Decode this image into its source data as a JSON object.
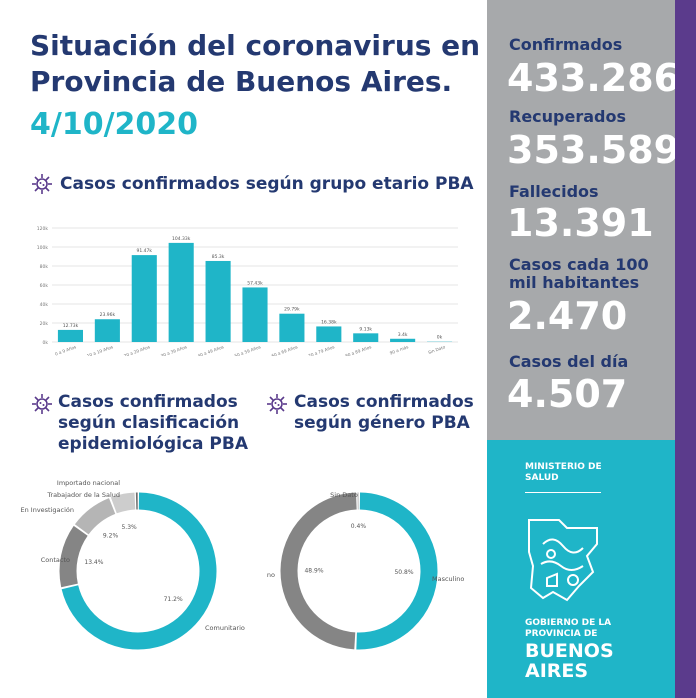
{
  "header": {
    "title": "Situación del coronavirus en\nProvincia de Buenos Aires.",
    "date": "4/10/2020"
  },
  "colors": {
    "navy": "#243971",
    "teal": "#1FB5C8",
    "gray": "#A7A9AB",
    "purple": "#5B3B8C",
    "donut_gray_dark": "#858585",
    "donut_gray_light": "#B5B5B5"
  },
  "icons": {
    "section": "virus-icon"
  },
  "sections": {
    "age": "Casos confirmados según grupo etario PBA",
    "epi": "Casos confirmados\nsegún clasificación\nepidemiológica PBA",
    "gender": "Casos confirmados\nsegún género PBA"
  },
  "stats": [
    {
      "label": "Confirmados",
      "value": "433.286"
    },
    {
      "label": "Recuperados",
      "value": "353.589"
    },
    {
      "label": "Fallecidos",
      "value": "13.391"
    },
    {
      "label": "Casos cada 100\nmil habitantes",
      "value": "2.470"
    },
    {
      "label": "Casos del día",
      "value": "4.507"
    }
  ],
  "brand": {
    "ministry": "MINISTERIO DE\nSALUD",
    "gov": "GOBIERNO DE LA\nPROVINCIA DE",
    "ba": "BUENOS\nAIRES"
  },
  "chart_data": [
    {
      "type": "bar",
      "categories": [
        "0 a 9 Años",
        "10 a 19 Años",
        "20 a 29 Años",
        "30 a 39 Años",
        "40 a 49 Años",
        "50 a 59 Años",
        "60 a 69 Años",
        "70 a 79 Años",
        "80 a 89 Años",
        "90 a más",
        "Sin Dato"
      ],
      "values": [
        12730,
        23960,
        91470,
        104330,
        85300,
        57430,
        29790,
        16380,
        9130,
        3400,
        300
      ],
      "data_labels": [
        "12.73k",
        "23.96k",
        "91.47k",
        "104.33k",
        "85.3k",
        "57.43k",
        "29.79k",
        "16.38k",
        "9.13k",
        "3.4k",
        "0k"
      ],
      "ytick_labels": [
        "0k",
        "20k",
        "40k",
        "60k",
        "80k",
        "100k",
        "120k"
      ],
      "ylim": [
        0,
        120000
      ],
      "grid": true
    },
    {
      "type": "pie",
      "labels": [
        "Comunitario",
        "Contacto",
        "En Investigación",
        "Trabajador de la Salud",
        "Importado nacional"
      ],
      "values": [
        71.2,
        13.4,
        9.2,
        5.3,
        0.5
      ],
      "pct_labels": [
        "71.2%",
        "13.4%",
        "9.2%",
        "5.3%",
        ""
      ],
      "colors": [
        "#1FB5C8",
        "#858585",
        "#B5B5B5",
        "#CDCDCD",
        "#6E6E6E"
      ]
    },
    {
      "type": "pie",
      "labels": [
        "Masculino",
        "no",
        "Sin Dato"
      ],
      "values": [
        50.8,
        48.9,
        0.4
      ],
      "pct_labels": [
        "50.8%",
        "48.9%",
        "0.4%"
      ],
      "colors": [
        "#1FB5C8",
        "#858585",
        "#C0C0C0"
      ]
    }
  ]
}
